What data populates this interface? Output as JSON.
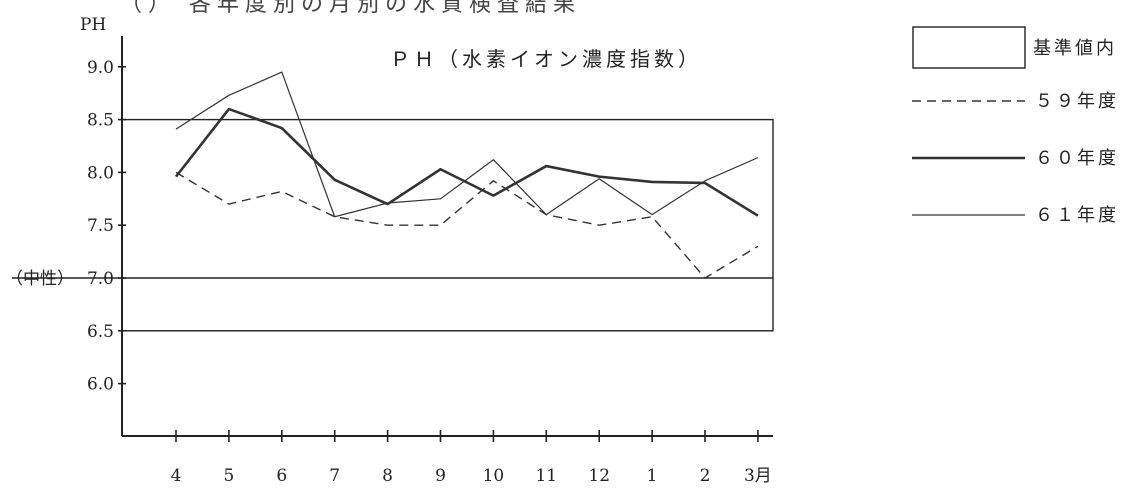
{
  "header_fragment": "（） 各年度別の月別の水質検査結果",
  "chart_data": {
    "type": "line",
    "title": "ＰＨ（水素イオン濃度指数）",
    "ylabel": "PH",
    "categories": [
      "4",
      "5",
      "6",
      "7",
      "8",
      "9",
      "10",
      "11",
      "12",
      "1",
      "2",
      "3月"
    ],
    "yticks": [
      {
        "value": 9.0,
        "label": "9.0"
      },
      {
        "value": 8.5,
        "label": "8.5"
      },
      {
        "value": 8.0,
        "label": "8.0"
      },
      {
        "value": 7.5,
        "label": "7.5"
      },
      {
        "value": 7.0,
        "label": "7.0"
      },
      {
        "value": 6.5,
        "label": "6.5"
      },
      {
        "value": 6.0,
        "label": "6.0"
      }
    ],
    "neutral_label": "（中性）",
    "neutral_value": 7.0,
    "ylim": [
      5.5,
      9.5
    ],
    "standard_range": {
      "name": "基準値内",
      "low": 6.5,
      "high": 8.5
    },
    "series": [
      {
        "name": "５９年度",
        "style": "dashed",
        "values": [
          8.0,
          7.7,
          7.82,
          7.58,
          7.5,
          7.5,
          7.92,
          7.6,
          7.5,
          7.58,
          7.0,
          7.3
        ]
      },
      {
        "name": "６０年度",
        "style": "thick",
        "values": [
          7.96,
          8.6,
          8.42,
          7.93,
          7.7,
          8.03,
          7.78,
          8.06,
          7.96,
          7.91,
          7.9,
          7.59
        ]
      },
      {
        "name": "６１年度",
        "style": "thin",
        "values": [
          8.41,
          8.73,
          8.95,
          7.58,
          7.71,
          7.75,
          8.12,
          7.6,
          7.94,
          7.6,
          7.92,
          8.14
        ]
      }
    ],
    "legend_position": "right",
    "grid": false
  }
}
